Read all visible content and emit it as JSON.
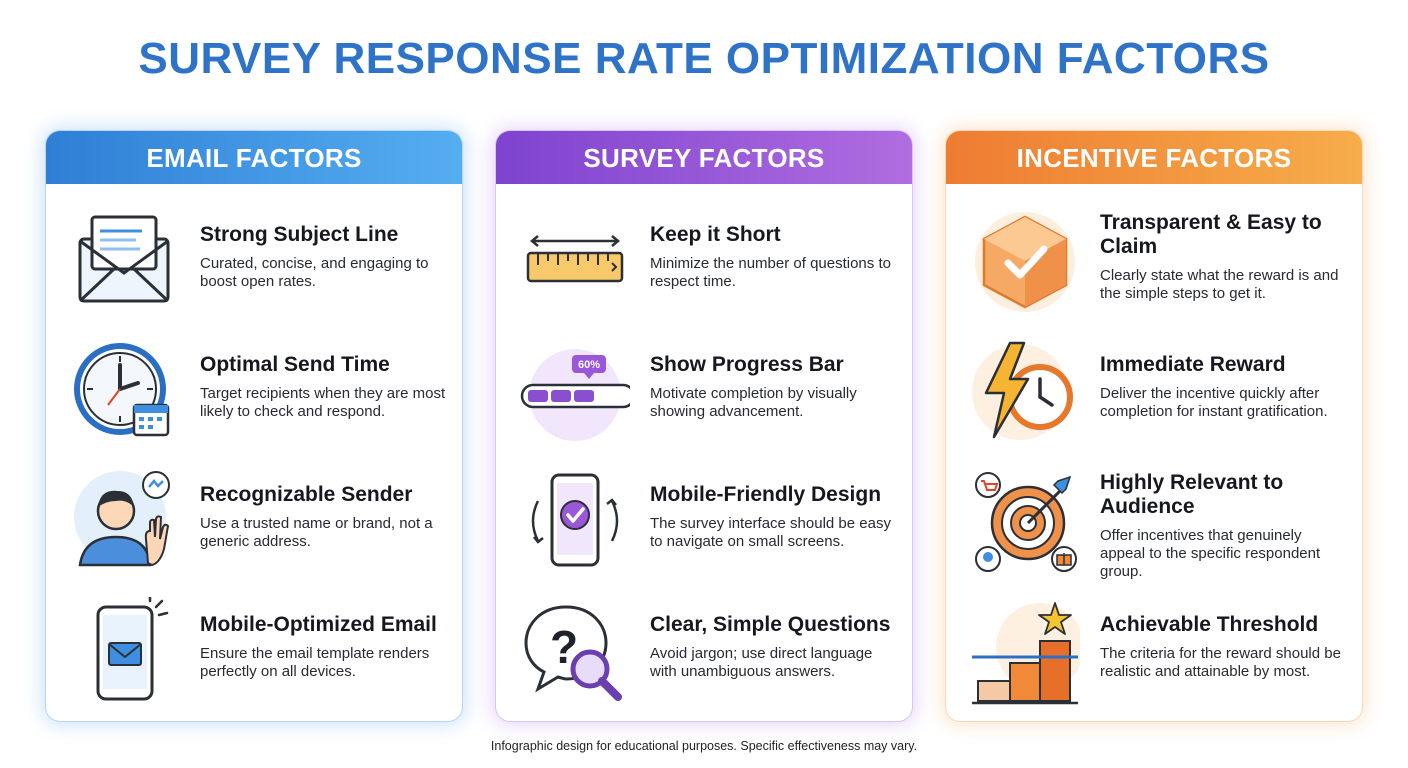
{
  "title": "SURVEY RESPONSE RATE OPTIMIZATION FACTORS",
  "columns": [
    {
      "header": "EMAIL FACTORS",
      "color": "#3b8fe0",
      "items": [
        {
          "title": "Strong Subject Line",
          "desc": "Curated, concise, and engaging to boost open rates.",
          "icon": "envelope-icon"
        },
        {
          "title": "Optimal Send Time",
          "desc": "Target recipients when they are most likely to check and respond.",
          "icon": "clock-calendar-icon"
        },
        {
          "title": "Recognizable Sender",
          "desc": "Use a trusted name or brand, not a generic address.",
          "icon": "waving-person-icon"
        },
        {
          "title": "Mobile-Optimized Email",
          "desc": "Ensure the email template renders perfectly on all devices.",
          "icon": "phone-mail-icon"
        }
      ]
    },
    {
      "header": "SURVEY FACTORS",
      "color": "#9a58d8",
      "items": [
        {
          "title": "Keep it Short",
          "desc": "Minimize the number of questions to respect time.",
          "icon": "ruler-icon"
        },
        {
          "title": "Show Progress Bar",
          "desc": "Motivate completion by visually showing advancement.",
          "icon": "progress-bar-icon",
          "badge": "60%"
        },
        {
          "title": "Mobile-Friendly Design",
          "desc": "The survey interface should be easy to navigate on small screens.",
          "icon": "phone-check-icon"
        },
        {
          "title": "Clear, Simple Questions",
          "desc": "Avoid jargon; use direct language with unambiguous answers.",
          "icon": "question-magnifier-icon"
        }
      ]
    },
    {
      "header": "INCENTIVE FACTORS",
      "color": "#f08a38",
      "items": [
        {
          "title": "Transparent & Easy to Claim",
          "desc": "Clearly state what the reward is and the simple steps to get it.",
          "icon": "checkbox-cube-icon"
        },
        {
          "title": "Immediate Reward",
          "desc": "Deliver the incentive quickly after completion for instant gratification.",
          "icon": "lightning-clock-icon"
        },
        {
          "title": "Highly Relevant to Audience",
          "desc": "Offer incentives that genuinely appeal to the specific respondent group.",
          "icon": "target-arrow-icon"
        },
        {
          "title": "Achievable Threshold",
          "desc": "The criteria for the reward should be realistic and attainable by most.",
          "icon": "bar-star-icon"
        }
      ]
    }
  ],
  "footnote": "Infographic design for educational purposes. Specific effectiveness may vary."
}
